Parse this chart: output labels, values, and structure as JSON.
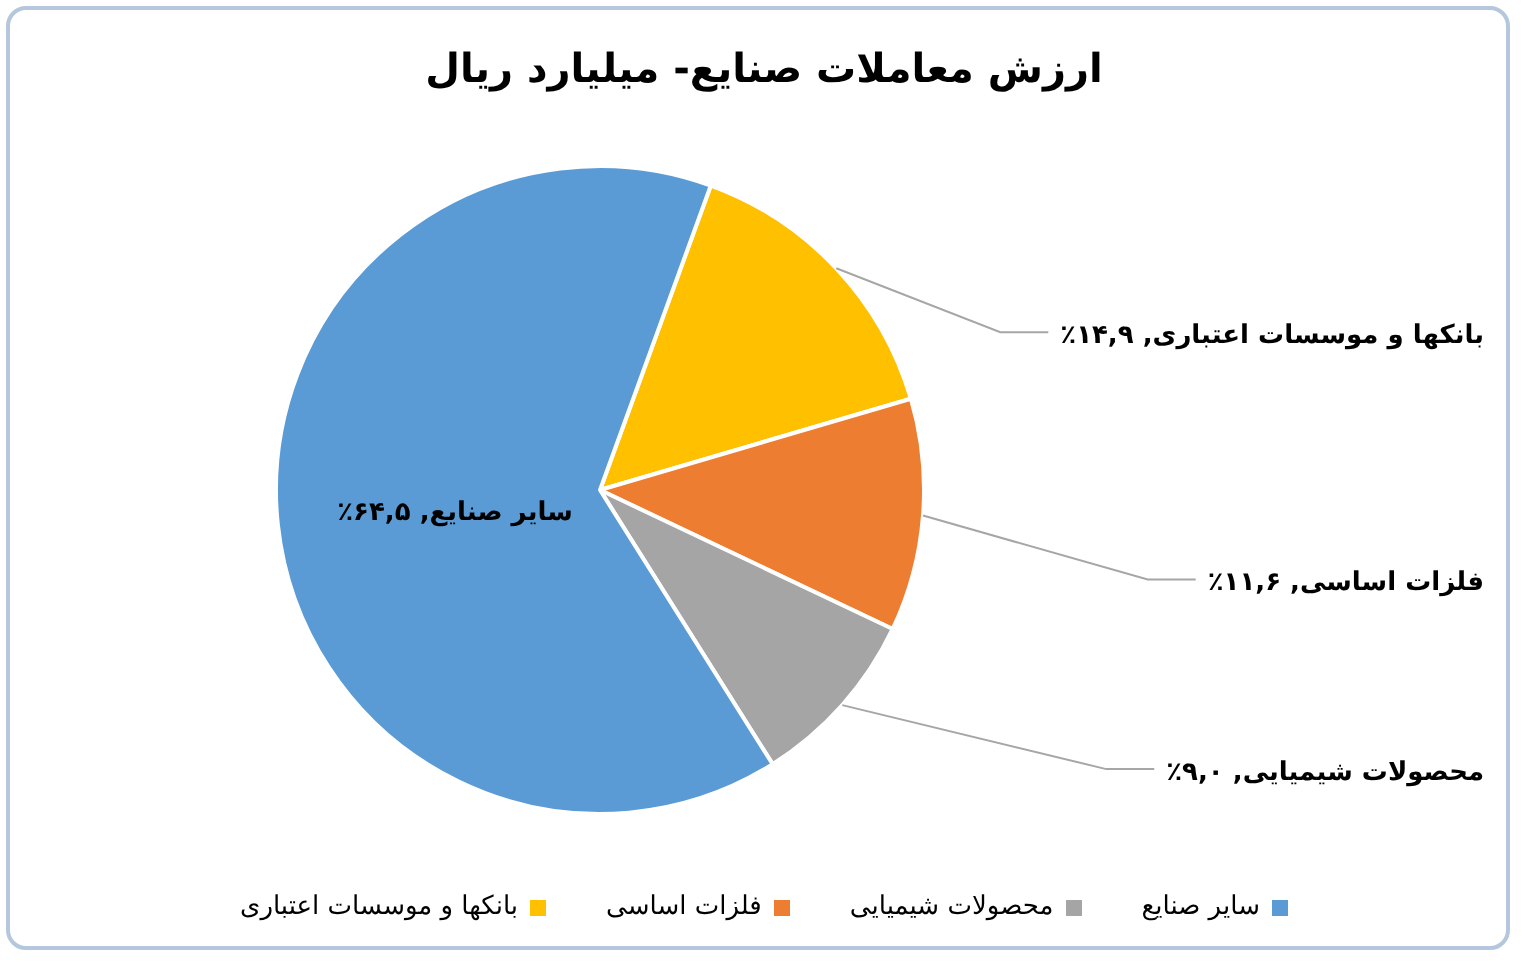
{
  "chart_data": {
    "type": "pie",
    "title": "ارزش معاملات صنایع- میلیارد ریال",
    "categories": [
      "بانکها و موسسات اعتباری",
      "فلزات اساسی",
      "محصولات شیمیایی",
      "سایر صنایع"
    ],
    "values": [
      14.9,
      11.6,
      9.0,
      64.5
    ],
    "colors": [
      "#ffc000",
      "#ed7d31",
      "#a5a5a5",
      "#5b9bd5"
    ],
    "value_labels": [
      ", ۱۴,۹٪",
      ", ۱۱,۶٪",
      ", ۹,۰٪",
      ", ۶۴,۵٪"
    ],
    "legend": "bottom"
  }
}
